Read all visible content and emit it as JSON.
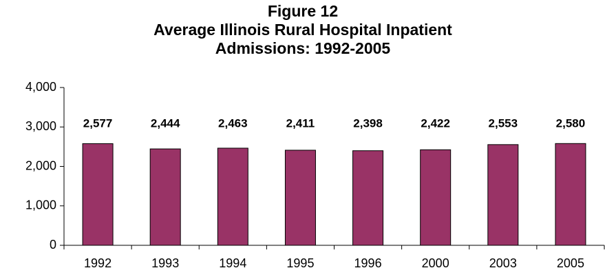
{
  "chart_data": {
    "type": "bar",
    "title": [
      "Figure 12",
      "Average Illinois Rural Hospital Inpatient",
      "Admissions:  1992-2005"
    ],
    "categories": [
      "1992",
      "1993",
      "1994",
      "1995",
      "1996",
      "2000",
      "2003",
      "2005"
    ],
    "values": [
      2577,
      2444,
      2463,
      2411,
      2398,
      2422,
      2553,
      2580
    ],
    "value_labels": [
      "2,577",
      "2,444",
      "2,463",
      "2,411",
      "2,398",
      "2,422",
      "2,553",
      "2,580"
    ],
    "color": "#993366",
    "ylim": [
      0,
      4000
    ],
    "yticks": [
      0,
      {
        "value": 1000,
        "label": "1,000"
      },
      {
        "value": 2000,
        "label": "2,000"
      },
      {
        "value": 3000,
        "label": "3,000"
      },
      {
        "value": 4000,
        "label": "4,000"
      }
    ]
  }
}
